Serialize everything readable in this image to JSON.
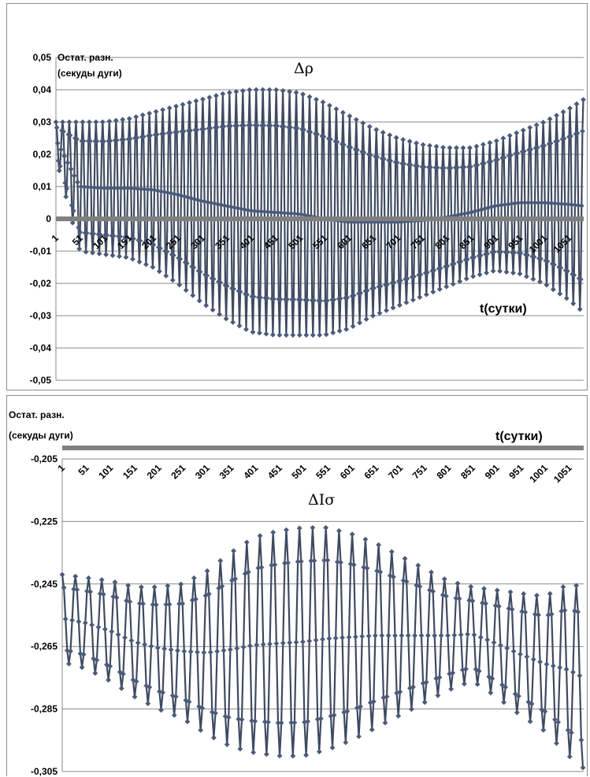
{
  "chart_data": [
    {
      "type": "line",
      "title": "Δρ",
      "ylabel_line1": "Остат. разн.",
      "ylabel_line2": "(секуды дуги)",
      "xlabel": "t(сутки)",
      "ylim": [
        -0.05,
        0.05
      ],
      "ytick_values": [
        0.05,
        0.04,
        0.03,
        0.02,
        0.01,
        0,
        -0.01,
        -0.02,
        -0.03,
        -0.04,
        -0.05
      ],
      "ytick_labels": [
        "0,05",
        "0,04",
        "0,03",
        "0,02",
        "0,01",
        "0",
        "-0,01",
        "-0,02",
        "-0,03",
        "-0,04",
        "-0,05"
      ],
      "xlim": [
        1,
        1081
      ],
      "xtick_labels": [
        "1",
        "51",
        "101",
        "151",
        "201",
        "251",
        "301",
        "351",
        "401",
        "451",
        "501",
        "551",
        "601",
        "651",
        "701",
        "751",
        "801",
        "851",
        "901",
        "951",
        "1001",
        "1051"
      ],
      "grid": true,
      "series": [
        {
          "color": "#4a5a78",
          "period_days": 13.66,
          "envelope": {
            "x": [
              1,
              50,
              100,
              150,
              200,
              250,
              300,
              350,
              400,
              450,
              500,
              550,
              600,
              650,
              700,
              750,
              800,
              850,
              900,
              950,
              1000,
              1050,
              1081
            ],
            "upper": [
              0.03,
              0.03,
              0.03,
              0.031,
              0.033,
              0.035,
              0.037,
              0.039,
              0.04,
              0.04,
              0.039,
              0.036,
              0.032,
              0.028,
              0.025,
              0.023,
              0.022,
              0.022,
              0.024,
              0.027,
              0.03,
              0.034,
              0.037
            ],
            "lower": [
              0.019,
              -0.01,
              -0.011,
              -0.012,
              -0.015,
              -0.02,
              -0.026,
              -0.031,
              -0.035,
              -0.036,
              -0.036,
              -0.036,
              -0.034,
              -0.03,
              -0.027,
              -0.024,
              -0.021,
              -0.018,
              -0.016,
              -0.017,
              -0.02,
              -0.025,
              -0.029
            ]
          }
        }
      ]
    },
    {
      "type": "line",
      "title": "ΔIσ",
      "ylabel_line1": "Остат. разн.",
      "ylabel_line2": "(секуды дуги)",
      "xlabel": "t(сутки)",
      "ylim": [
        -0.305,
        -0.205
      ],
      "ytick_values": [
        -0.205,
        -0.225,
        -0.245,
        -0.265,
        -0.285,
        -0.305
      ],
      "ytick_labels": [
        "-0,205",
        "-0,225",
        "-0,245",
        "-0,265",
        "-0,285",
        "-0,305"
      ],
      "xlim": [
        1,
        1081
      ],
      "xtick_labels": [
        "1",
        "51",
        "101",
        "151",
        "201",
        "251",
        "301",
        "351",
        "401",
        "451",
        "501",
        "551",
        "601",
        "651",
        "701",
        "751",
        "801",
        "851",
        "901",
        "951",
        "1001",
        "1051"
      ],
      "grid": true,
      "series": [
        {
          "color": "#4a5a78",
          "period_days": 27.3,
          "envelope": {
            "x": [
              1,
              50,
              100,
              150,
              200,
              250,
              300,
              350,
              400,
              450,
              500,
              550,
              600,
              650,
              700,
              750,
              800,
              850,
              900,
              950,
              1000,
              1050,
              1081
            ],
            "upper": [
              -0.242,
              -0.243,
              -0.244,
              -0.246,
              -0.246,
              -0.245,
              -0.241,
              -0.235,
              -0.23,
              -0.228,
              -0.227,
              -0.227,
              -0.229,
              -0.232,
              -0.236,
              -0.24,
              -0.244,
              -0.246,
              -0.247,
              -0.248,
              -0.249,
              -0.245,
              -0.246
            ],
            "lower": [
              -0.27,
              -0.272,
              -0.276,
              -0.281,
              -0.285,
              -0.288,
              -0.293,
              -0.297,
              -0.299,
              -0.3,
              -0.3,
              -0.298,
              -0.295,
              -0.291,
              -0.287,
              -0.283,
              -0.279,
              -0.276,
              -0.281,
              -0.287,
              -0.292,
              -0.3,
              -0.304
            ]
          }
        }
      ]
    }
  ]
}
